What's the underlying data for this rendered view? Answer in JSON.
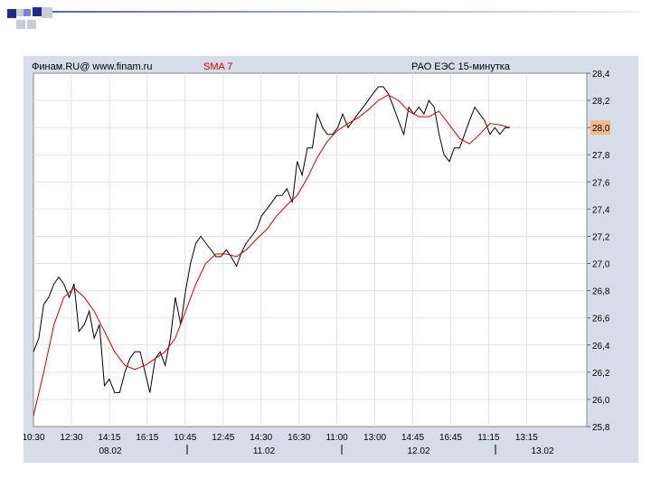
{
  "header": {
    "source": "Финам.RU@ www.finam.ru",
    "indicator": "SMA 7",
    "title": "РАО ЕЭС 15-минутка"
  },
  "colors": {
    "panel_bg": "#d7dde8",
    "plot_bg": "#ffffff",
    "price_line": "#000000",
    "sma_line": "#cc0000",
    "indicator_label": "#cc0000",
    "current_price_marker": "#f4b88a",
    "deco_navy": "#1f2a8c",
    "deco_blue": "#7a86c8",
    "deco_gray": "#c8ccd6"
  },
  "chart_data": {
    "type": "line",
    "title": "РАО ЕЭС 15-минутка",
    "indicator": "SMA 7",
    "ylim": [
      25.8,
      28.4
    ],
    "y_ticks": [
      "28,4",
      "28,2",
      "28,0",
      "27,8",
      "27,6",
      "27,4",
      "27,2",
      "27,0",
      "26,8",
      "26,6",
      "26,4",
      "26,2",
      "26,0",
      "25,8"
    ],
    "current_price_label": "28,0",
    "x_ticks": [
      "10:30",
      "12:30",
      "14:15",
      "16:15",
      "10:45",
      "12:45",
      "14:30",
      "16:30",
      "11:00",
      "13:00",
      "14:45",
      "16:45",
      "11:15",
      "13:15"
    ],
    "date_labels": [
      "08.02",
      "11.02",
      "12.02",
      "13.02"
    ],
    "x_range": [
      0,
      124
    ],
    "grid": true,
    "series": [
      {
        "name": "",
        "values": [
          [
            0,
            26.35
          ],
          [
            1.2,
            26.45
          ],
          [
            2.3,
            26.7
          ],
          [
            3.4,
            26.75
          ],
          [
            4.6,
            26.85
          ],
          [
            5.7,
            26.9
          ],
          [
            6.8,
            26.85
          ],
          [
            8,
            26.75
          ],
          [
            9.1,
            26.85
          ],
          [
            10.2,
            26.5
          ],
          [
            11.4,
            26.55
          ],
          [
            12.5,
            26.65
          ],
          [
            13.6,
            26.45
          ],
          [
            14.8,
            26.55
          ],
          [
            15.9,
            26.1
          ],
          [
            17,
            26.15
          ],
          [
            18.2,
            26.05
          ],
          [
            19.3,
            26.05
          ],
          [
            20.5,
            26.2
          ],
          [
            21.6,
            26.3
          ],
          [
            22.7,
            26.35
          ],
          [
            23.9,
            26.35
          ],
          [
            25,
            26.2
          ],
          [
            26.1,
            26.05
          ],
          [
            27.3,
            26.3
          ],
          [
            28.4,
            26.35
          ],
          [
            29.5,
            26.25
          ],
          [
            30.7,
            26.45
          ],
          [
            31.8,
            26.75
          ],
          [
            33,
            26.55
          ],
          [
            34.1,
            26.8
          ],
          [
            35.2,
            27.0
          ],
          [
            36.4,
            27.15
          ],
          [
            37.5,
            27.2
          ],
          [
            38.6,
            27.15
          ],
          [
            39.8,
            27.1
          ],
          [
            40.9,
            27.05
          ],
          [
            42,
            27.05
          ],
          [
            43.2,
            27.1
          ],
          [
            44.3,
            27.05
          ],
          [
            45.5,
            26.98
          ],
          [
            46.6,
            27.08
          ],
          [
            47.7,
            27.15
          ],
          [
            48.9,
            27.2
          ],
          [
            50,
            27.25
          ],
          [
            51.1,
            27.35
          ],
          [
            52.3,
            27.4
          ],
          [
            53.4,
            27.45
          ],
          [
            54.5,
            27.5
          ],
          [
            55.7,
            27.5
          ],
          [
            56.8,
            27.55
          ],
          [
            58,
            27.45
          ],
          [
            59.1,
            27.75
          ],
          [
            60.2,
            27.65
          ],
          [
            61.4,
            27.85
          ],
          [
            62.5,
            27.85
          ],
          [
            63.6,
            28.1
          ],
          [
            64.8,
            28.0
          ],
          [
            65.9,
            27.95
          ],
          [
            67,
            27.95
          ],
          [
            68.2,
            28.0
          ],
          [
            69.3,
            28.1
          ],
          [
            70.5,
            28.0
          ],
          [
            71.6,
            28.05
          ],
          [
            72.7,
            28.1
          ],
          [
            73.9,
            28.15
          ],
          [
            75,
            28.2
          ],
          [
            76.1,
            28.25
          ],
          [
            77.3,
            28.3
          ],
          [
            78.4,
            28.3
          ],
          [
            79.5,
            28.25
          ],
          [
            80.7,
            28.15
          ],
          [
            81.8,
            28.05
          ],
          [
            83,
            27.95
          ],
          [
            84.1,
            28.15
          ],
          [
            85.2,
            28.1
          ],
          [
            86.4,
            28.15
          ],
          [
            87.5,
            28.1
          ],
          [
            88.6,
            28.2
          ],
          [
            89.8,
            28.15
          ],
          [
            90.9,
            27.95
          ],
          [
            92,
            27.8
          ],
          [
            93.2,
            27.75
          ],
          [
            94.3,
            27.85
          ],
          [
            95.5,
            27.85
          ],
          [
            96.6,
            27.95
          ],
          [
            97.7,
            28.05
          ],
          [
            98.9,
            28.15
          ],
          [
            100,
            28.1
          ],
          [
            101.1,
            28.05
          ],
          [
            102.3,
            27.95
          ],
          [
            103.4,
            28.0
          ],
          [
            104.5,
            27.95
          ],
          [
            105.7,
            28.0
          ],
          [
            106.8,
            28.0
          ]
        ]
      },
      {
        "name": "SMA 7",
        "values": [
          [
            0,
            25.88
          ],
          [
            2.3,
            26.2
          ],
          [
            4.6,
            26.55
          ],
          [
            6.8,
            26.75
          ],
          [
            9.1,
            26.82
          ],
          [
            11.4,
            26.75
          ],
          [
            13.6,
            26.65
          ],
          [
            15.9,
            26.5
          ],
          [
            18.2,
            26.35
          ],
          [
            20.5,
            26.25
          ],
          [
            22.7,
            26.22
          ],
          [
            25,
            26.25
          ],
          [
            27.3,
            26.3
          ],
          [
            29.5,
            26.35
          ],
          [
            31.8,
            26.45
          ],
          [
            34.1,
            26.65
          ],
          [
            36.4,
            26.85
          ],
          [
            38.6,
            27.0
          ],
          [
            40.9,
            27.07
          ],
          [
            43.2,
            27.07
          ],
          [
            45.5,
            27.05
          ],
          [
            47.7,
            27.1
          ],
          [
            50,
            27.18
          ],
          [
            52.3,
            27.25
          ],
          [
            54.5,
            27.35
          ],
          [
            56.8,
            27.43
          ],
          [
            59.1,
            27.5
          ],
          [
            61.4,
            27.63
          ],
          [
            63.6,
            27.78
          ],
          [
            65.9,
            27.9
          ],
          [
            68.2,
            27.98
          ],
          [
            70.5,
            28.03
          ],
          [
            72.7,
            28.07
          ],
          [
            75,
            28.13
          ],
          [
            77.3,
            28.2
          ],
          [
            79.5,
            28.24
          ],
          [
            81.8,
            28.2
          ],
          [
            84.1,
            28.12
          ],
          [
            86.4,
            28.08
          ],
          [
            88.6,
            28.08
          ],
          [
            90.9,
            28.12
          ],
          [
            93.2,
            28.02
          ],
          [
            95.5,
            27.92
          ],
          [
            97.7,
            27.88
          ],
          [
            100,
            27.95
          ],
          [
            102.3,
            28.03
          ],
          [
            104.5,
            28.02
          ],
          [
            106.8,
            28.0
          ]
        ]
      }
    ]
  }
}
